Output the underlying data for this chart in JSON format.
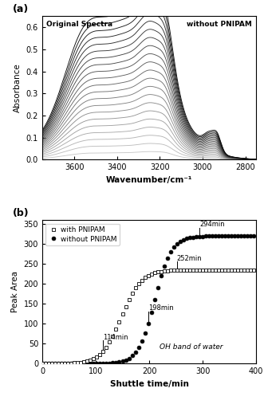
{
  "panel_a": {
    "title_left": "Original Spectra",
    "title_right": "without PNIPAM",
    "xlabel": "Wavenumber/cm⁻¹",
    "ylabel": "Absorbance",
    "xmin": 2750,
    "xmax": 3750,
    "ymin": 0.0,
    "ymax": 0.65,
    "n_spectra": 22
  },
  "panel_b": {
    "xlabel": "Shuttle time/min",
    "ylabel": "Peak Area",
    "annotation_text": "OH band of water",
    "xmin": 0,
    "xmax": 400,
    "ymin": 0,
    "ymax": 360,
    "with_pnipam_label": "with PNIPAM",
    "without_pnipam_label": "without PNIPAM",
    "ann_114": "114min",
    "ann_198": "198min",
    "ann_252": "252min",
    "ann_294": "294min",
    "with_pnipam_asymptote": 235,
    "without_pnipam_asymptote": 320
  }
}
